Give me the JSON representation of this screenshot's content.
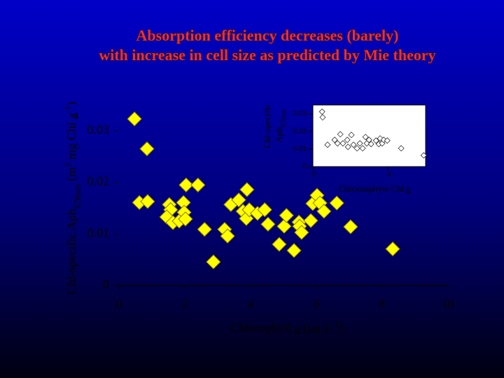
{
  "title": [
    "Absorption efficiency decreases (barely)",
    "with increase in cell size as predicted by Mie theory"
  ],
  "chart_data": [
    {
      "type": "scatter",
      "color": "#ffff00",
      "x_label": [
        "Chlorophyll ",
        "a",
        " (µg L",
        "-1",
        ")"
      ],
      "y_label": [
        "Chl-specific Aph",
        "676nm",
        " (m",
        "2",
        " mg Chl ",
        "a",
        "-1",
        ")"
      ],
      "xlim": [
        0,
        10
      ],
      "xticks": [
        0,
        2,
        4,
        6,
        8,
        10
      ],
      "ylim": [
        0,
        0.035
      ],
      "yticks": [
        0,
        0.01,
        0.02,
        0.03
      ],
      "x": [
        0.47,
        0.85,
        0.62,
        0.87,
        1.53,
        1.57,
        1.45,
        1.64,
        1.83,
        1.96,
        1.98,
        2.02,
        2.04,
        2.4,
        2.6,
        2.87,
        3.21,
        3.3,
        3.4,
        3.64,
        3.77,
        3.89,
        3.87,
        3.96,
        4.21,
        4.43,
        4.53,
        4.87,
        5.02,
        5.09,
        5.32,
        5.47,
        5.49,
        5.55,
        5.83,
        5.89,
        6.02,
        6.11,
        6.23,
        6.62,
        7.04,
        8.32
      ],
      "values": [
        0.0323,
        0.0265,
        0.0161,
        0.0163,
        0.0157,
        0.0147,
        0.0133,
        0.0122,
        0.0125,
        0.0161,
        0.0142,
        0.0129,
        0.0195,
        0.0195,
        0.0109,
        0.0046,
        0.0109,
        0.0096,
        0.0157,
        0.0166,
        0.0144,
        0.0186,
        0.013,
        0.0147,
        0.014,
        0.0147,
        0.0119,
        0.008,
        0.0115,
        0.0136,
        0.0068,
        0.0123,
        0.0115,
        0.0103,
        0.0126,
        0.0159,
        0.0175,
        0.016,
        0.0144,
        0.016,
        0.0114,
        0.0071
      ]
    },
    {
      "type": "scatter",
      "color": "#ffffff",
      "x_label": [
        "Chromophyte Chl ",
        "a"
      ],
      "y_label": [
        [
          "Chl-specific"
        ],
        [
          "Aph",
          "676nm"
        ]
      ],
      "xlim": [
        0,
        6
      ],
      "xticks": [
        0,
        4
      ],
      "ylim": [
        0,
        0.035
      ],
      "yticks": [
        0,
        0.01,
        0.02,
        0.03
      ],
      "x": [
        0.49,
        0.52,
        1.46,
        1.16,
        1.31,
        1.6,
        1.83,
        1.87,
        2.05,
        2.16,
        2.35,
        2.5,
        2.65,
        2.8,
        2.87,
        2.99,
        3.1,
        3.36,
        3.51,
        3.58,
        3.69,
        3.77,
        3.96,
        4.7,
        5.9,
        0.78
      ],
      "values": [
        0.0312,
        0.028,
        0.0184,
        0.0152,
        0.0132,
        0.0132,
        0.0152,
        0.0112,
        0.018,
        0.0124,
        0.0104,
        0.0132,
        0.0104,
        0.0168,
        0.0132,
        0.0152,
        0.0128,
        0.0148,
        0.0128,
        0.016,
        0.0132,
        0.0152,
        0.0148,
        0.0104,
        0.0064,
        0.0124
      ]
    }
  ]
}
